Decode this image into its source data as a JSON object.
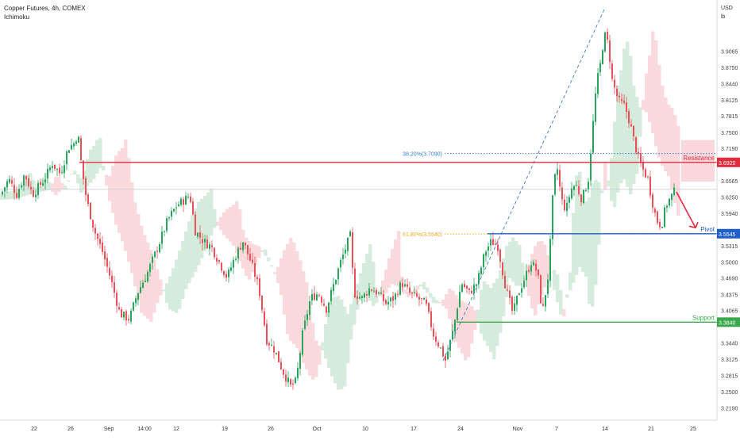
{
  "header": {
    "title": "Copper Futures, 4h, COMEX",
    "indicator": "Ichimoku"
  },
  "axis": {
    "currency": "USD",
    "unit": "lb"
  },
  "colors": {
    "up": "#26a65b",
    "down": "#e9505a",
    "resistance": "#e02b3d",
    "pivot": "#1f5ec9",
    "support": "#3aa84a",
    "cloud_green": "#cfe9d6",
    "cloud_red": "#f9d3d6",
    "fib_blue": "#3b7ad1",
    "fib_orange": "#f0a81e",
    "arrow": "#e02b3d"
  },
  "chart_data": {
    "type": "candlestick",
    "title": "Copper Futures, 4h, COMEX",
    "ylabel": "USD / lb",
    "ylim": [
      3.195,
      4.005
    ],
    "y_ticks": [
      "3.9065",
      "3.8750",
      "3.8440",
      "3.8125",
      "3.7815",
      "3.7500",
      "3.7190",
      "3.6565",
      "3.6250",
      "3.5940",
      "3.5315",
      "3.5000",
      "3.4690",
      "3.4375",
      "3.4065",
      "3.3440",
      "3.3125",
      "3.2815",
      "3.2500",
      "3.2190"
    ],
    "x_ticks": [
      "22",
      "26",
      "Sep",
      "14:00",
      "12",
      "19",
      "26",
      "Oct",
      "10",
      "17",
      "24",
      "Nov",
      "7",
      "14",
      "21",
      "25"
    ],
    "levels": [
      {
        "name": "Resistance",
        "value": 3.692,
        "value_label": "3.6920"
      },
      {
        "name": "Pivot",
        "value": 3.5545,
        "value_label": "3.5545"
      },
      {
        "name": "Support",
        "value": 3.384,
        "value_label": "3.3840"
      }
    ],
    "fibonacci": [
      {
        "label": "38.20%(3.7090)",
        "value": 3.709
      },
      {
        "label": "61.80%(3.5540)",
        "value": 3.554
      }
    ],
    "grid": false,
    "anchors": [
      [
        0,
        3.63
      ],
      [
        10,
        3.66
      ],
      [
        20,
        3.63
      ],
      [
        30,
        3.67
      ],
      [
        40,
        3.63
      ],
      [
        55,
        3.66
      ],
      [
        65,
        3.69
      ],
      [
        75,
        3.67
      ],
      [
        85,
        3.72
      ],
      [
        93,
        3.73
      ],
      [
        97,
        3.75
      ],
      [
        102,
        3.68
      ],
      [
        108,
        3.62
      ],
      [
        118,
        3.56
      ],
      [
        128,
        3.52
      ],
      [
        138,
        3.47
      ],
      [
        150,
        3.4
      ],
      [
        162,
        3.39
      ],
      [
        172,
        3.44
      ],
      [
        185,
        3.48
      ],
      [
        198,
        3.53
      ],
      [
        210,
        3.58
      ],
      [
        222,
        3.61
      ],
      [
        232,
        3.62
      ],
      [
        238,
        3.63
      ],
      [
        245,
        3.56
      ],
      [
        255,
        3.54
      ],
      [
        265,
        3.53
      ],
      [
        275,
        3.5
      ],
      [
        285,
        3.47
      ],
      [
        295,
        3.51
      ],
      [
        305,
        3.54
      ],
      [
        315,
        3.5
      ],
      [
        325,
        3.45
      ],
      [
        335,
        3.35
      ],
      [
        345,
        3.33
      ],
      [
        355,
        3.29
      ],
      [
        365,
        3.26
      ],
      [
        372,
        3.27
      ],
      [
        380,
        3.36
      ],
      [
        390,
        3.43
      ],
      [
        400,
        3.44
      ],
      [
        410,
        3.41
      ],
      [
        420,
        3.46
      ],
      [
        428,
        3.5
      ],
      [
        435,
        3.53
      ],
      [
        440,
        3.55
      ],
      [
        445,
        3.44
      ],
      [
        455,
        3.43
      ],
      [
        465,
        3.45
      ],
      [
        475,
        3.44
      ],
      [
        485,
        3.42
      ],
      [
        495,
        3.43
      ],
      [
        505,
        3.46
      ],
      [
        515,
        3.44
      ],
      [
        525,
        3.43
      ],
      [
        535,
        3.42
      ],
      [
        545,
        3.36
      ],
      [
        555,
        3.33
      ],
      [
        560,
        3.31
      ],
      [
        570,
        3.37
      ],
      [
        580,
        3.46
      ],
      [
        590,
        3.44
      ],
      [
        600,
        3.46
      ],
      [
        610,
        3.52
      ],
      [
        618,
        3.54
      ],
      [
        626,
        3.53
      ],
      [
        636,
        3.45
      ],
      [
        645,
        3.4
      ],
      [
        652,
        3.44
      ],
      [
        660,
        3.47
      ],
      [
        668,
        3.5
      ],
      [
        676,
        3.48
      ],
      [
        682,
        3.4
      ],
      [
        690,
        3.48
      ],
      [
        695,
        3.62
      ],
      [
        700,
        3.69
      ],
      [
        706,
        3.62
      ],
      [
        712,
        3.6
      ],
      [
        718,
        3.64
      ],
      [
        724,
        3.65
      ],
      [
        732,
        3.62
      ],
      [
        740,
        3.66
      ],
      [
        745,
        3.75
      ],
      [
        750,
        3.84
      ],
      [
        755,
        3.88
      ],
      [
        760,
        3.94
      ],
      [
        765,
        3.92
      ],
      [
        770,
        3.85
      ],
      [
        778,
        3.81
      ],
      [
        786,
        3.8
      ],
      [
        792,
        3.77
      ],
      [
        798,
        3.73
      ],
      [
        803,
        3.7
      ],
      [
        808,
        3.68
      ],
      [
        815,
        3.66
      ],
      [
        820,
        3.62
      ],
      [
        826,
        3.58
      ],
      [
        832,
        3.57
      ],
      [
        838,
        3.61
      ],
      [
        842,
        3.62
      ],
      [
        846,
        3.63
      ],
      [
        850,
        3.64
      ]
    ]
  }
}
